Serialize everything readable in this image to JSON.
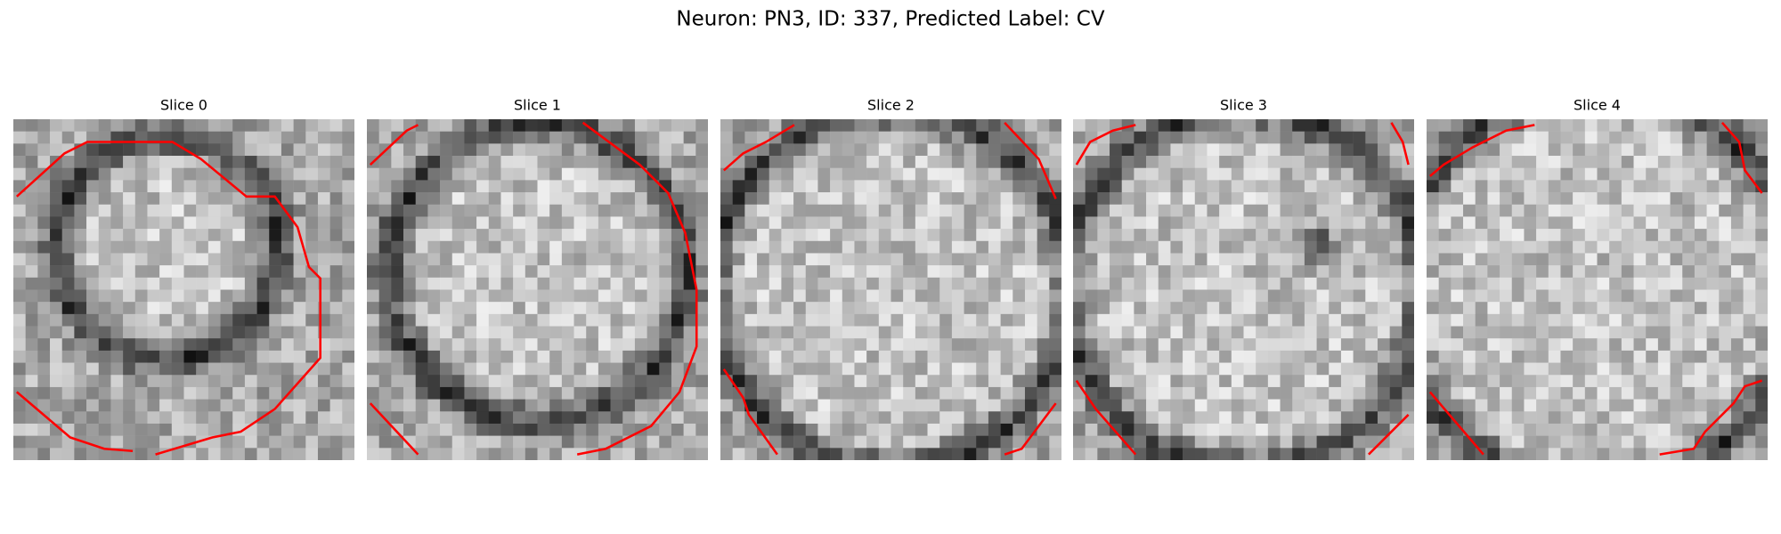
{
  "title": "Neuron: PN3, ID: 337, Predicted Label: CV",
  "panels": [
    {
      "title": "Slice 0"
    },
    {
      "title": "Slice 1"
    },
    {
      "title": "Slice 2"
    },
    {
      "title": "Slice 3"
    },
    {
      "title": "Slice 4"
    }
  ]
}
